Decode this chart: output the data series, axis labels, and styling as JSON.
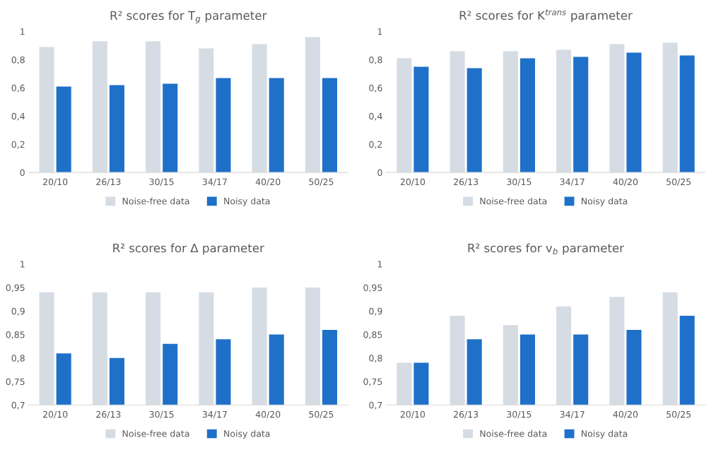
{
  "chart_data": [
    {
      "type": "bar",
      "title": "R² scores for T$_{g}$ parameter",
      "categories": [
        "20/10",
        "26/13",
        "30/15",
        "34/17",
        "40/20",
        "50/25"
      ],
      "series": [
        {
          "name": "Noise-free data",
          "color": "#d6dce4",
          "values": [
            0.89,
            0.93,
            0.93,
            0.88,
            0.91,
            0.96
          ]
        },
        {
          "name": "Noisy data",
          "color": "#1f70c8",
          "values": [
            0.61,
            0.62,
            0.63,
            0.67,
            0.67,
            0.67
          ]
        }
      ],
      "ylim": [
        0,
        1
      ],
      "yticks": [
        0,
        {
          "value": 0.2,
          "label": "0,2"
        },
        {
          "value": 0.4,
          "label": "0,4"
        },
        {
          "value": 0.6,
          "label": "0,6"
        },
        {
          "value": 0.8,
          "label": "0,8"
        },
        1
      ],
      "grid": false,
      "legend": "bottom"
    },
    {
      "type": "bar",
      "title": "R² scores for K$^{trans}$ parameter",
      "categories": [
        "20/10",
        "26/13",
        "30/15",
        "34/17",
        "40/20",
        "50/25"
      ],
      "series": [
        {
          "name": "Noise-free data",
          "color": "#d6dce4",
          "values": [
            0.81,
            0.86,
            0.86,
            0.87,
            0.91,
            0.92
          ]
        },
        {
          "name": "Noisy data",
          "color": "#1f70c8",
          "values": [
            0.75,
            0.74,
            0.81,
            0.82,
            0.85,
            0.83
          ]
        }
      ],
      "ylim": [
        0,
        1
      ],
      "yticks": [
        0,
        {
          "value": 0.2,
          "label": "0,2"
        },
        {
          "value": 0.4,
          "label": "0,4"
        },
        {
          "value": 0.6,
          "label": "0,6"
        },
        {
          "value": 0.8,
          "label": "0,8"
        },
        1
      ],
      "grid": false,
      "legend": "bottom"
    },
    {
      "type": "bar",
      "title": "R² scores for Δ parameter",
      "categories": [
        "20/10",
        "26/13",
        "30/15",
        "34/17",
        "40/20",
        "50/25"
      ],
      "series": [
        {
          "name": "Noise-free data",
          "color": "#d6dce4",
          "values": [
            0.94,
            0.94,
            0.94,
            0.94,
            0.95,
            0.95
          ]
        },
        {
          "name": "Noisy data",
          "color": "#1f70c8",
          "values": [
            0.81,
            0.8,
            0.83,
            0.84,
            0.85,
            0.86
          ]
        }
      ],
      "ylim": [
        0.7,
        1
      ],
      "yticks": [
        {
          "value": 0.7,
          "label": "0,7"
        },
        {
          "value": 0.75,
          "label": "0,75"
        },
        {
          "value": 0.8,
          "label": "0,8"
        },
        {
          "value": 0.85,
          "label": "0,85"
        },
        {
          "value": 0.9,
          "label": "0,9"
        },
        {
          "value": 0.95,
          "label": "0,95"
        },
        1
      ],
      "grid": false,
      "legend": "bottom"
    },
    {
      "type": "bar",
      "title": "R² scores for v$_{b}$ parameter",
      "categories": [
        "20/10",
        "26/13",
        "30/15",
        "34/17",
        "40/20",
        "50/25"
      ],
      "series": [
        {
          "name": "Noise-free data",
          "color": "#d6dce4",
          "values": [
            0.79,
            0.89,
            0.87,
            0.91,
            0.93,
            0.94
          ]
        },
        {
          "name": "Noisy data",
          "color": "#1f70c8",
          "values": [
            0.79,
            0.84,
            0.85,
            0.85,
            0.86,
            0.89
          ]
        }
      ],
      "ylim": [
        0.7,
        1
      ],
      "yticks": [
        {
          "value": 0.7,
          "label": "0,7"
        },
        {
          "value": 0.75,
          "label": "0,75"
        },
        {
          "value": 0.8,
          "label": "0,8"
        },
        {
          "value": 0.85,
          "label": "0,85"
        },
        {
          "value": 0.9,
          "label": "0,9"
        },
        {
          "value": 0.95,
          "label": "0,95"
        },
        1
      ],
      "grid": false,
      "legend": "bottom"
    }
  ]
}
